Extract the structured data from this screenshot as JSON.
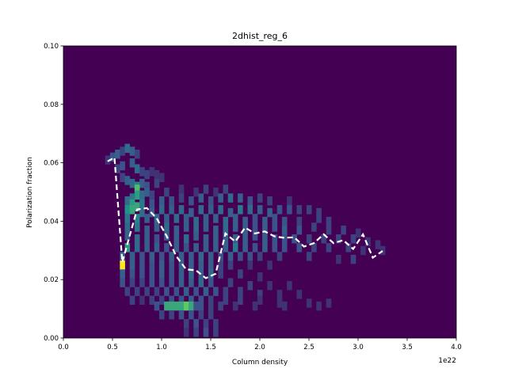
{
  "chart_data": {
    "type": "heatmap",
    "title": "2dhist_reg_6",
    "xlabel": "Column density",
    "ylabel": "Polarization fraction",
    "x_offset_label": "1e22",
    "xlim": [
      0.0,
      4.0
    ],
    "ylim": [
      0.0,
      0.1
    ],
    "x_ticks": [
      0.0,
      0.5,
      1.0,
      1.5,
      2.0,
      2.5,
      3.0,
      3.5,
      4.0
    ],
    "x_tick_labels": [
      "0.0",
      "0.5",
      "1.0",
      "1.5",
      "2.0",
      "2.5",
      "3.0",
      "3.5",
      "4.0"
    ],
    "y_ticks": [
      0.0,
      0.02,
      0.04,
      0.06,
      0.08,
      0.1
    ],
    "y_tick_labels": [
      "0.00",
      "0.02",
      "0.04",
      "0.06",
      "0.08",
      "0.10"
    ],
    "colormap": "viridis",
    "background_color": "#440154",
    "bins": {
      "x_edges": [
        0.0,
        4.0,
        80
      ],
      "y_edges": [
        0.0,
        0.1,
        100
      ],
      "note_units": "x in 1e22"
    },
    "hist_cells": [
      [
        0.45,
        0.061,
        0.15
      ],
      [
        0.5,
        0.062,
        0.25
      ],
      [
        0.55,
        0.063,
        0.3
      ],
      [
        0.6,
        0.064,
        0.2
      ],
      [
        0.65,
        0.065,
        0.35
      ],
      [
        0.7,
        0.064,
        0.3
      ],
      [
        0.75,
        0.063,
        0.2
      ],
      [
        0.55,
        0.058,
        0.2
      ],
      [
        0.6,
        0.059,
        0.25
      ],
      [
        0.7,
        0.06,
        0.3
      ],
      [
        0.75,
        0.058,
        0.35
      ],
      [
        0.8,
        0.057,
        0.2
      ],
      [
        0.85,
        0.056,
        0.2
      ],
      [
        0.9,
        0.057,
        0.15
      ],
      [
        0.95,
        0.056,
        0.15
      ],
      [
        1.0,
        0.055,
        0.15
      ],
      [
        0.6,
        0.055,
        0.2
      ],
      [
        0.65,
        0.054,
        0.3
      ],
      [
        0.7,
        0.053,
        0.35
      ],
      [
        0.75,
        0.052,
        0.45
      ],
      [
        0.8,
        0.053,
        0.3
      ],
      [
        0.85,
        0.052,
        0.25
      ],
      [
        0.95,
        0.053,
        0.2
      ],
      [
        0.75,
        0.051,
        0.7
      ],
      [
        0.75,
        0.049,
        0.55
      ],
      [
        0.7,
        0.048,
        0.4
      ],
      [
        0.8,
        0.049,
        0.35
      ],
      [
        0.85,
        0.05,
        0.3
      ],
      [
        0.9,
        0.049,
        0.2
      ],
      [
        1.05,
        0.05,
        0.2
      ],
      [
        1.2,
        0.051,
        0.15
      ],
      [
        1.35,
        0.05,
        0.15
      ],
      [
        1.45,
        0.051,
        0.2
      ],
      [
        1.55,
        0.05,
        0.15
      ],
      [
        1.65,
        0.051,
        0.2
      ],
      [
        0.65,
        0.047,
        0.35
      ],
      [
        0.7,
        0.046,
        0.55
      ],
      [
        0.75,
        0.045,
        0.6
      ],
      [
        0.8,
        0.046,
        0.4
      ],
      [
        0.9,
        0.046,
        0.25
      ],
      [
        1.0,
        0.047,
        0.3
      ],
      [
        1.1,
        0.047,
        0.25
      ],
      [
        1.2,
        0.048,
        0.2
      ],
      [
        1.3,
        0.047,
        0.25
      ],
      [
        1.4,
        0.048,
        0.3
      ],
      [
        1.5,
        0.047,
        0.25
      ],
      [
        1.6,
        0.048,
        0.3
      ],
      [
        1.7,
        0.048,
        0.35
      ],
      [
        1.8,
        0.048,
        0.3
      ],
      [
        1.9,
        0.047,
        0.25
      ],
      [
        2.0,
        0.048,
        0.2
      ],
      [
        2.1,
        0.047,
        0.2
      ],
      [
        2.3,
        0.047,
        0.15
      ],
      [
        0.65,
        0.044,
        0.5
      ],
      [
        0.7,
        0.044,
        0.6
      ],
      [
        0.8,
        0.043,
        0.35
      ],
      [
        0.9,
        0.043,
        0.3
      ],
      [
        1.0,
        0.044,
        0.35
      ],
      [
        1.1,
        0.044,
        0.3
      ],
      [
        1.2,
        0.044,
        0.35
      ],
      [
        1.3,
        0.043,
        0.3
      ],
      [
        1.4,
        0.044,
        0.35
      ],
      [
        1.5,
        0.044,
        0.3
      ],
      [
        1.6,
        0.044,
        0.35
      ],
      [
        1.7,
        0.043,
        0.3
      ],
      [
        1.8,
        0.044,
        0.4
      ],
      [
        1.9,
        0.044,
        0.35
      ],
      [
        2.0,
        0.044,
        0.3
      ],
      [
        2.1,
        0.043,
        0.3
      ],
      [
        2.2,
        0.044,
        0.25
      ],
      [
        2.3,
        0.044,
        0.25
      ],
      [
        2.4,
        0.044,
        0.2
      ],
      [
        2.5,
        0.044,
        0.2
      ],
      [
        2.6,
        0.043,
        0.2
      ],
      [
        0.65,
        0.041,
        0.4
      ],
      [
        0.75,
        0.041,
        0.45
      ],
      [
        0.85,
        0.041,
        0.3
      ],
      [
        0.95,
        0.041,
        0.35
      ],
      [
        1.05,
        0.041,
        0.3
      ],
      [
        1.15,
        0.041,
        0.35
      ],
      [
        1.25,
        0.041,
        0.3
      ],
      [
        1.35,
        0.04,
        0.35
      ],
      [
        1.45,
        0.041,
        0.3
      ],
      [
        1.55,
        0.041,
        0.3
      ],
      [
        1.65,
        0.04,
        0.35
      ],
      [
        1.75,
        0.041,
        0.3
      ],
      [
        1.85,
        0.04,
        0.3
      ],
      [
        1.95,
        0.041,
        0.25
      ],
      [
        2.05,
        0.04,
        0.3
      ],
      [
        2.15,
        0.041,
        0.25
      ],
      [
        2.25,
        0.04,
        0.25
      ],
      [
        2.4,
        0.04,
        0.2
      ],
      [
        2.6,
        0.041,
        0.2
      ],
      [
        2.7,
        0.04,
        0.2
      ],
      [
        0.65,
        0.038,
        0.35
      ],
      [
        0.75,
        0.038,
        0.4
      ],
      [
        0.85,
        0.037,
        0.3
      ],
      [
        0.95,
        0.038,
        0.3
      ],
      [
        1.05,
        0.038,
        0.35
      ],
      [
        1.15,
        0.037,
        0.3
      ],
      [
        1.25,
        0.038,
        0.3
      ],
      [
        1.35,
        0.037,
        0.35
      ],
      [
        1.45,
        0.038,
        0.3
      ],
      [
        1.55,
        0.037,
        0.3
      ],
      [
        1.65,
        0.037,
        0.35
      ],
      [
        1.75,
        0.038,
        0.3
      ],
      [
        1.85,
        0.037,
        0.3
      ],
      [
        1.95,
        0.038,
        0.25
      ],
      [
        2.05,
        0.037,
        0.3
      ],
      [
        2.15,
        0.038,
        0.25
      ],
      [
        2.25,
        0.037,
        0.3
      ],
      [
        2.4,
        0.037,
        0.25
      ],
      [
        2.55,
        0.038,
        0.2
      ],
      [
        2.7,
        0.037,
        0.2
      ],
      [
        2.85,
        0.037,
        0.2
      ],
      [
        3.0,
        0.036,
        0.15
      ],
      [
        0.65,
        0.035,
        0.3
      ],
      [
        0.75,
        0.034,
        0.35
      ],
      [
        0.85,
        0.034,
        0.3
      ],
      [
        0.95,
        0.034,
        0.25
      ],
      [
        1.05,
        0.035,
        0.3
      ],
      [
        1.15,
        0.034,
        0.3
      ],
      [
        1.25,
        0.034,
        0.35
      ],
      [
        1.35,
        0.035,
        0.3
      ],
      [
        1.45,
        0.034,
        0.3
      ],
      [
        1.55,
        0.034,
        0.3
      ],
      [
        1.65,
        0.034,
        0.3
      ],
      [
        1.75,
        0.034,
        0.3
      ],
      [
        1.85,
        0.034,
        0.3
      ],
      [
        1.95,
        0.035,
        0.25
      ],
      [
        2.05,
        0.034,
        0.3
      ],
      [
        2.15,
        0.034,
        0.25
      ],
      [
        2.25,
        0.034,
        0.25
      ],
      [
        2.35,
        0.034,
        0.25
      ],
      [
        2.5,
        0.034,
        0.2
      ],
      [
        2.65,
        0.034,
        0.2
      ],
      [
        2.8,
        0.034,
        0.2
      ],
      [
        2.95,
        0.034,
        0.2
      ],
      [
        3.1,
        0.033,
        0.15
      ],
      [
        3.2,
        0.032,
        0.15
      ],
      [
        0.65,
        0.031,
        0.55
      ],
      [
        0.75,
        0.031,
        0.35
      ],
      [
        0.85,
        0.031,
        0.3
      ],
      [
        0.95,
        0.031,
        0.3
      ],
      [
        1.05,
        0.031,
        0.25
      ],
      [
        1.15,
        0.031,
        0.3
      ],
      [
        1.25,
        0.031,
        0.25
      ],
      [
        1.35,
        0.031,
        0.3
      ],
      [
        1.45,
        0.031,
        0.3
      ],
      [
        1.55,
        0.031,
        0.3
      ],
      [
        1.65,
        0.031,
        0.3
      ],
      [
        1.75,
        0.031,
        0.4
      ],
      [
        1.85,
        0.031,
        0.3
      ],
      [
        1.95,
        0.031,
        0.25
      ],
      [
        2.05,
        0.031,
        0.3
      ],
      [
        2.15,
        0.031,
        0.25
      ],
      [
        2.25,
        0.031,
        0.25
      ],
      [
        2.4,
        0.031,
        0.25
      ],
      [
        2.55,
        0.031,
        0.2
      ],
      [
        2.7,
        0.031,
        0.2
      ],
      [
        2.9,
        0.031,
        0.2
      ],
      [
        3.05,
        0.03,
        0.15
      ],
      [
        3.25,
        0.03,
        0.15
      ],
      [
        0.6,
        0.028,
        0.3
      ],
      [
        0.7,
        0.028,
        0.3
      ],
      [
        0.8,
        0.028,
        0.25
      ],
      [
        0.9,
        0.028,
        0.3
      ],
      [
        1.0,
        0.028,
        0.25
      ],
      [
        1.1,
        0.028,
        0.3
      ],
      [
        1.2,
        0.028,
        0.3
      ],
      [
        1.3,
        0.028,
        0.3
      ],
      [
        1.4,
        0.028,
        0.35
      ],
      [
        1.5,
        0.028,
        0.3
      ],
      [
        1.6,
        0.028,
        0.25
      ],
      [
        1.7,
        0.028,
        0.3
      ],
      [
        1.8,
        0.028,
        0.25
      ],
      [
        1.9,
        0.028,
        0.25
      ],
      [
        2.0,
        0.028,
        0.2
      ],
      [
        2.2,
        0.028,
        0.2
      ],
      [
        2.5,
        0.028,
        0.2
      ],
      [
        2.8,
        0.027,
        0.15
      ],
      [
        2.95,
        0.027,
        0.2
      ],
      [
        0.6,
        0.025,
        1.0
      ],
      [
        0.7,
        0.025,
        0.3
      ],
      [
        0.8,
        0.025,
        0.25
      ],
      [
        0.9,
        0.025,
        0.25
      ],
      [
        1.0,
        0.025,
        0.3
      ],
      [
        1.1,
        0.025,
        0.25
      ],
      [
        1.2,
        0.025,
        0.3
      ],
      [
        1.3,
        0.025,
        0.3
      ],
      [
        1.4,
        0.025,
        0.3
      ],
      [
        1.5,
        0.025,
        0.3
      ],
      [
        1.6,
        0.025,
        0.2
      ],
      [
        1.7,
        0.025,
        0.2
      ],
      [
        1.9,
        0.025,
        0.15
      ],
      [
        2.1,
        0.025,
        0.15
      ],
      [
        0.6,
        0.022,
        0.3
      ],
      [
        0.7,
        0.022,
        0.25
      ],
      [
        0.8,
        0.022,
        0.25
      ],
      [
        0.9,
        0.022,
        0.25
      ],
      [
        1.0,
        0.022,
        0.3
      ],
      [
        1.1,
        0.022,
        0.25
      ],
      [
        1.2,
        0.022,
        0.3
      ],
      [
        1.3,
        0.022,
        0.35
      ],
      [
        1.4,
        0.022,
        0.3
      ],
      [
        1.5,
        0.022,
        0.35
      ],
      [
        1.6,
        0.022,
        0.2
      ],
      [
        1.8,
        0.022,
        0.2
      ],
      [
        2.0,
        0.021,
        0.15
      ],
      [
        0.6,
        0.019,
        0.25
      ],
      [
        0.7,
        0.019,
        0.2
      ],
      [
        0.8,
        0.019,
        0.2
      ],
      [
        0.9,
        0.019,
        0.25
      ],
      [
        1.0,
        0.019,
        0.25
      ],
      [
        1.1,
        0.019,
        0.25
      ],
      [
        1.2,
        0.019,
        0.3
      ],
      [
        1.3,
        0.019,
        0.3
      ],
      [
        1.4,
        0.019,
        0.35
      ],
      [
        1.5,
        0.019,
        0.25
      ],
      [
        1.7,
        0.019,
        0.2
      ],
      [
        1.9,
        0.018,
        0.2
      ],
      [
        2.1,
        0.018,
        0.15
      ],
      [
        2.3,
        0.018,
        0.15
      ],
      [
        0.65,
        0.016,
        0.2
      ],
      [
        0.75,
        0.016,
        0.2
      ],
      [
        0.85,
        0.016,
        0.2
      ],
      [
        0.95,
        0.016,
        0.2
      ],
      [
        1.05,
        0.016,
        0.25
      ],
      [
        1.15,
        0.016,
        0.25
      ],
      [
        1.25,
        0.016,
        0.3
      ],
      [
        1.35,
        0.016,
        0.25
      ],
      [
        1.45,
        0.016,
        0.3
      ],
      [
        1.55,
        0.016,
        0.25
      ],
      [
        1.65,
        0.016,
        0.2
      ],
      [
        1.8,
        0.016,
        0.2
      ],
      [
        2.0,
        0.015,
        0.2
      ],
      [
        2.2,
        0.015,
        0.15
      ],
      [
        2.4,
        0.015,
        0.15
      ],
      [
        0.7,
        0.013,
        0.2
      ],
      [
        0.8,
        0.013,
        0.15
      ],
      [
        0.9,
        0.013,
        0.2
      ],
      [
        1.0,
        0.013,
        0.2
      ],
      [
        1.1,
        0.013,
        0.25
      ],
      [
        1.2,
        0.013,
        0.25
      ],
      [
        1.3,
        0.013,
        0.3
      ],
      [
        1.4,
        0.013,
        0.25
      ],
      [
        1.5,
        0.013,
        0.2
      ],
      [
        1.65,
        0.013,
        0.2
      ],
      [
        1.8,
        0.013,
        0.2
      ],
      [
        2.0,
        0.013,
        0.15
      ],
      [
        2.2,
        0.012,
        0.15
      ],
      [
        2.5,
        0.012,
        0.15
      ],
      [
        2.7,
        0.012,
        0.15
      ],
      [
        1.05,
        0.011,
        0.6
      ],
      [
        1.1,
        0.011,
        0.6
      ],
      [
        1.15,
        0.011,
        0.6
      ],
      [
        1.2,
        0.011,
        0.6
      ],
      [
        1.25,
        0.011,
        0.75
      ],
      [
        1.3,
        0.011,
        0.6
      ],
      [
        0.95,
        0.011,
        0.25
      ],
      [
        1.35,
        0.011,
        0.25
      ],
      [
        1.4,
        0.011,
        0.25
      ],
      [
        1.5,
        0.011,
        0.2
      ],
      [
        1.6,
        0.011,
        0.2
      ],
      [
        1.75,
        0.011,
        0.15
      ],
      [
        1.95,
        0.011,
        0.15
      ],
      [
        2.25,
        0.011,
        0.15
      ],
      [
        2.6,
        0.011,
        0.15
      ],
      [
        1.0,
        0.008,
        0.2
      ],
      [
        1.1,
        0.008,
        0.2
      ],
      [
        1.2,
        0.008,
        0.25
      ],
      [
        1.3,
        0.008,
        0.25
      ],
      [
        1.4,
        0.008,
        0.2
      ],
      [
        1.5,
        0.008,
        0.2
      ],
      [
        1.25,
        0.005,
        0.2
      ],
      [
        1.35,
        0.005,
        0.25
      ],
      [
        1.45,
        0.005,
        0.2
      ],
      [
        1.55,
        0.005,
        0.2
      ],
      [
        1.25,
        0.002,
        0.15
      ],
      [
        1.35,
        0.002,
        0.2
      ],
      [
        1.45,
        0.002,
        0.25
      ],
      [
        1.55,
        0.002,
        0.2
      ]
    ],
    "series": [
      {
        "color": "#ffffff",
        "style": "dashed",
        "x": [
          0.45,
          0.52,
          0.6,
          0.75,
          0.85,
          0.95,
          1.05,
          1.15,
          1.25,
          1.35,
          1.45,
          1.55,
          1.65,
          1.75,
          1.85,
          1.95,
          2.05,
          2.15,
          2.25,
          2.35,
          2.45,
          2.55,
          2.65,
          2.75,
          2.85,
          2.95,
          3.05,
          3.15,
          3.25
        ],
        "y": [
          0.0605,
          0.0618,
          0.026,
          0.044,
          0.0445,
          0.041,
          0.035,
          0.028,
          0.0235,
          0.0232,
          0.0205,
          0.022,
          0.0358,
          0.033,
          0.0378,
          0.0358,
          0.0365,
          0.0348,
          0.0343,
          0.0345,
          0.0313,
          0.0325,
          0.0355,
          0.0325,
          0.0335,
          0.0305,
          0.0355,
          0.0275,
          0.0298
        ]
      }
    ]
  }
}
